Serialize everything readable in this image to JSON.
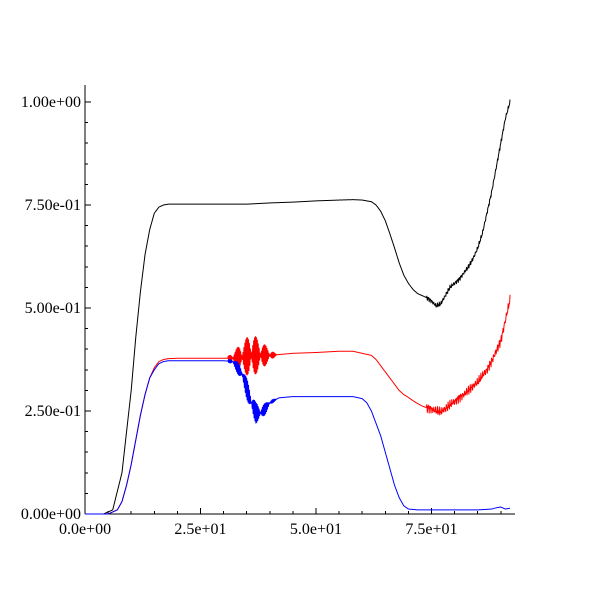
{
  "chart_data": {
    "type": "line",
    "title": "",
    "xlabel": "",
    "ylabel": "",
    "xlim": [
      0,
      92
    ],
    "ylim": [
      0,
      1.0
    ],
    "grid": false,
    "legend": "none",
    "x_ticks": [
      0,
      25,
      50,
      75
    ],
    "x_tick_labels": [
      "0.0e+00",
      "2.5e+01",
      "5.0e+01",
      "7.5e+01"
    ],
    "y_ticks": [
      0,
      0.25,
      0.5,
      0.75,
      1.0
    ],
    "y_tick_labels": [
      "0.00e+00",
      "2.50e-01",
      "5.00e-01",
      "7.50e-01",
      "1.00e+00"
    ],
    "series": [
      {
        "color": "#000000",
        "points": [
          [
            0,
            0
          ],
          [
            4,
            0.0
          ],
          [
            6,
            0.01
          ],
          [
            8,
            0.1
          ],
          [
            9,
            0.2
          ],
          [
            10,
            0.3
          ],
          [
            11,
            0.43
          ],
          [
            12,
            0.54
          ],
          [
            13,
            0.63
          ],
          [
            14,
            0.69
          ],
          [
            15,
            0.73
          ],
          [
            16,
            0.745
          ],
          [
            17,
            0.75
          ],
          [
            18,
            0.752
          ],
          [
            20,
            0.752
          ],
          [
            25,
            0.752
          ],
          [
            30,
            0.752
          ],
          [
            35,
            0.752
          ],
          [
            40,
            0.755
          ],
          [
            45,
            0.757
          ],
          [
            50,
            0.76
          ],
          [
            55,
            0.762
          ],
          [
            58,
            0.763
          ],
          [
            60,
            0.762
          ],
          [
            62,
            0.758
          ],
          [
            63,
            0.75
          ],
          [
            64,
            0.735
          ],
          [
            65,
            0.712
          ],
          [
            66,
            0.68
          ],
          [
            67,
            0.646
          ],
          [
            68,
            0.61
          ],
          [
            69,
            0.58
          ],
          [
            70,
            0.56
          ],
          [
            71,
            0.545
          ],
          [
            72,
            0.535
          ],
          [
            73,
            0.53
          ],
          [
            74,
            0.525
          ],
          [
            75,
            0.517
          ],
          [
            76,
            0.505
          ],
          [
            77,
            0.51
          ],
          [
            78,
            0.53
          ],
          [
            79,
            0.55
          ],
          [
            80,
            0.56
          ],
          [
            81,
            0.57
          ],
          [
            82,
            0.585
          ],
          [
            83,
            0.6
          ],
          [
            84,
            0.62
          ],
          [
            85,
            0.645
          ],
          [
            86,
            0.68
          ],
          [
            87,
            0.73
          ],
          [
            88,
            0.78
          ],
          [
            89,
            0.84
          ],
          [
            90,
            0.9
          ],
          [
            91,
            0.96
          ],
          [
            92,
            1.0
          ]
        ]
      },
      {
        "color": "#ff0000",
        "points": [
          [
            0,
            0
          ],
          [
            5,
            0.0
          ],
          [
            7,
            0.01
          ],
          [
            8,
            0.03
          ],
          [
            9,
            0.07
          ],
          [
            10,
            0.12
          ],
          [
            11,
            0.18
          ],
          [
            12,
            0.24
          ],
          [
            13,
            0.29
          ],
          [
            14,
            0.33
          ],
          [
            15,
            0.355
          ],
          [
            16,
            0.37
          ],
          [
            17,
            0.375
          ],
          [
            18,
            0.377
          ],
          [
            20,
            0.378
          ],
          [
            25,
            0.378
          ],
          [
            30,
            0.378
          ],
          [
            32,
            0.378
          ],
          [
            34,
            0.38
          ],
          [
            36,
            0.385
          ],
          [
            38,
            0.385
          ],
          [
            40,
            0.385
          ],
          [
            42,
            0.387
          ],
          [
            45,
            0.39
          ],
          [
            50,
            0.392
          ],
          [
            55,
            0.395
          ],
          [
            58,
            0.395
          ],
          [
            60,
            0.39
          ],
          [
            62,
            0.385
          ],
          [
            63,
            0.375
          ],
          [
            64,
            0.36
          ],
          [
            65,
            0.345
          ],
          [
            66,
            0.33
          ],
          [
            67,
            0.315
          ],
          [
            68,
            0.3
          ],
          [
            69,
            0.29
          ],
          [
            70,
            0.283
          ],
          [
            71,
            0.275
          ],
          [
            72,
            0.268
          ],
          [
            73,
            0.262
          ],
          [
            74,
            0.258
          ],
          [
            75,
            0.255
          ],
          [
            76,
            0.25
          ],
          [
            77,
            0.248
          ],
          [
            78,
            0.255
          ],
          [
            79,
            0.265
          ],
          [
            80,
            0.273
          ],
          [
            81,
            0.282
          ],
          [
            82,
            0.29
          ],
          [
            83,
            0.3
          ],
          [
            84,
            0.31
          ],
          [
            85,
            0.32
          ],
          [
            86,
            0.335
          ],
          [
            87,
            0.35
          ],
          [
            88,
            0.37
          ],
          [
            89,
            0.395
          ],
          [
            90,
            0.42
          ],
          [
            91,
            0.47
          ],
          [
            92,
            0.52
          ]
        ]
      },
      {
        "color": "#0000ff",
        "points": [
          [
            0,
            0
          ],
          [
            5,
            0.0
          ],
          [
            7,
            0.01
          ],
          [
            8,
            0.03
          ],
          [
            9,
            0.07
          ],
          [
            10,
            0.12
          ],
          [
            11,
            0.18
          ],
          [
            12,
            0.24
          ],
          [
            13,
            0.29
          ],
          [
            14,
            0.33
          ],
          [
            15,
            0.35
          ],
          [
            16,
            0.365
          ],
          [
            17,
            0.37
          ],
          [
            18,
            0.372
          ],
          [
            20,
            0.372
          ],
          [
            25,
            0.372
          ],
          [
            30,
            0.372
          ],
          [
            32,
            0.37
          ],
          [
            34,
            0.34
          ],
          [
            35,
            0.305
          ],
          [
            36,
            0.27
          ],
          [
            37,
            0.245
          ],
          [
            38,
            0.245
          ],
          [
            39,
            0.255
          ],
          [
            40,
            0.27
          ],
          [
            42,
            0.282
          ],
          [
            45,
            0.285
          ],
          [
            50,
            0.285
          ],
          [
            55,
            0.285
          ],
          [
            58,
            0.285
          ],
          [
            60,
            0.28
          ],
          [
            61,
            0.27
          ],
          [
            62,
            0.25
          ],
          [
            63,
            0.22
          ],
          [
            64,
            0.19
          ],
          [
            65,
            0.15
          ],
          [
            66,
            0.11
          ],
          [
            67,
            0.07
          ],
          [
            68,
            0.04
          ],
          [
            69,
            0.02
          ],
          [
            70,
            0.012
          ],
          [
            72,
            0.01
          ],
          [
            75,
            0.01
          ],
          [
            78,
            0.01
          ],
          [
            80,
            0.01
          ],
          [
            85,
            0.01
          ],
          [
            88,
            0.012
          ],
          [
            89,
            0.015
          ],
          [
            90,
            0.017
          ],
          [
            91,
            0.012
          ],
          [
            92,
            0.014
          ]
        ]
      }
    ],
    "oscillations": [
      {
        "series_index": 1,
        "x_range": [
          31,
          42
        ],
        "peak_x": 36,
        "amplitude": 0.055,
        "direction": "both"
      },
      {
        "series_index": 2,
        "x_range": [
          31,
          42
        ],
        "peak_x": 36,
        "amplitude": 0.03,
        "direction": "both"
      }
    ]
  }
}
